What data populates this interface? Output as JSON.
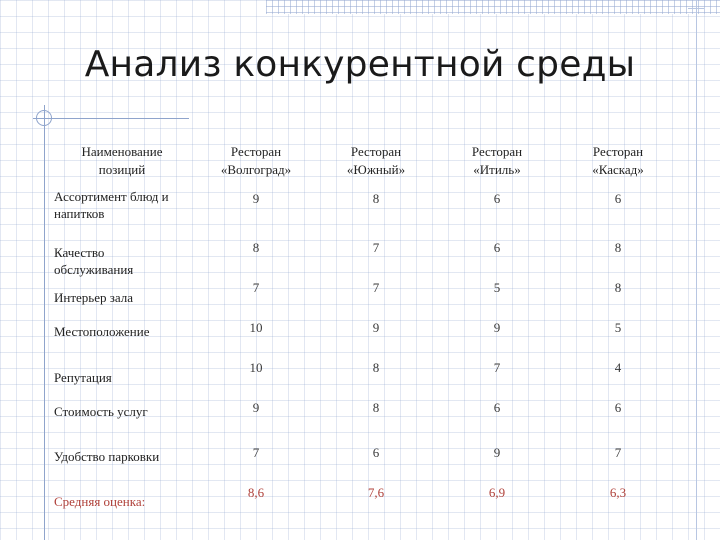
{
  "title": "Анализ конкурентной среды",
  "table": {
    "header_first": [
      "Наименование",
      "позиций"
    ],
    "restaurants": [
      {
        "line1": "Ресторан",
        "line2": "«Волгоград»"
      },
      {
        "line1": "Ресторан",
        "line2": "«Южный»"
      },
      {
        "line1": "Ресторан",
        "line2": "«Итиль»"
      },
      {
        "line1": "Ресторан",
        "line2": "«Каскад»"
      }
    ],
    "rows": [
      {
        "label": "Ассортимент блюд и напитков",
        "values": [
          "9",
          "8",
          "6",
          "6"
        ]
      },
      {
        "label": "Качество обслуживания",
        "values": [
          "8",
          "7",
          "6",
          "8"
        ]
      },
      {
        "label": "Интерьер зала",
        "values": [
          "7",
          "7",
          "5",
          "8"
        ]
      },
      {
        "label": "Местоположение",
        "values": [
          "10",
          "9",
          "9",
          "5"
        ]
      },
      {
        "label": "Репутация",
        "values": [
          "10",
          "8",
          "7",
          "4"
        ]
      },
      {
        "label": "Стоимость услуг",
        "values": [
          "9",
          "8",
          "6",
          "6"
        ]
      },
      {
        "label": "Удобство парковки",
        "values": [
          "7",
          "6",
          "9",
          "7"
        ]
      }
    ],
    "average": {
      "label": "Средняя оценка:",
      "values": [
        "8,6",
        "7,6",
        "6,9",
        "6,3"
      ]
    }
  },
  "colors": {
    "accent": "#b0413a",
    "grid": "#8fa4cc"
  }
}
